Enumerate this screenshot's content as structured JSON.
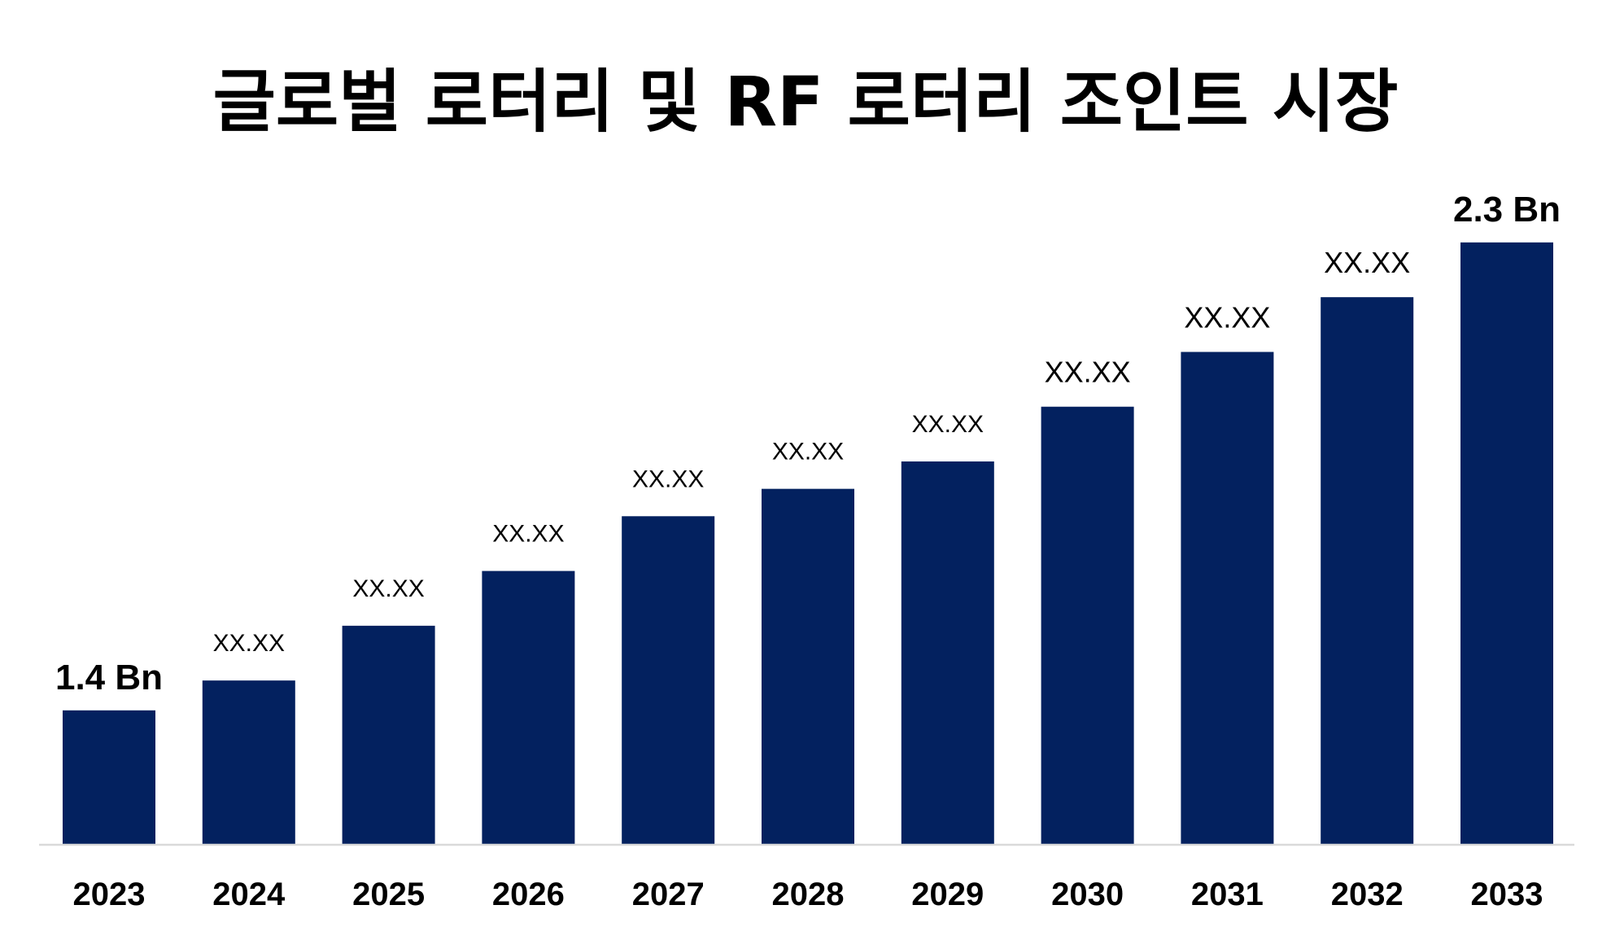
{
  "chart_data": {
    "type": "bar",
    "title": "글로벌 로터리 및 RF 로터리 조인트 시장",
    "xlabel": "",
    "ylabel": "",
    "categories": [
      "2023",
      "2024",
      "2025",
      "2026",
      "2027",
      "2028",
      "2029",
      "2030",
      "2031",
      "2032",
      "2033"
    ],
    "values": [
      1.4,
      1.46,
      1.57,
      1.68,
      1.79,
      1.845,
      1.9,
      2.01,
      2.12,
      2.23,
      2.34
    ],
    "data_labels": [
      "1.4 Bn",
      "XX.XX",
      "XX.XX",
      "XX.XX",
      "XX.XX",
      "XX.XX",
      "XX.XX",
      "XX.XX",
      "XX.XX",
      "XX.XX",
      "2.3 Bn"
    ],
    "unit": "Bn",
    "ylim": [
      1.13,
      2.5
    ],
    "grid": false,
    "legend": "none",
    "colors": {
      "bar": "#03215F",
      "baseline": "#D9D9D9",
      "text": "#000000"
    }
  }
}
